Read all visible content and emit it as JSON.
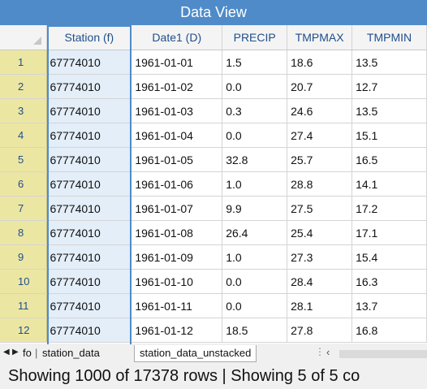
{
  "window": {
    "title": "Data View"
  },
  "grid": {
    "columns": [
      "Station (f)",
      "Date1 (D)",
      "PRECIP",
      "TMPMAX",
      "TMPMIN"
    ],
    "rows": [
      [
        "1",
        "67774010",
        "1961-01-01",
        "1.5",
        "18.6",
        "13.5"
      ],
      [
        "2",
        "67774010",
        "1961-01-02",
        "0.0",
        "20.7",
        "12.7"
      ],
      [
        "3",
        "67774010",
        "1961-01-03",
        "0.3",
        "24.6",
        "13.5"
      ],
      [
        "4",
        "67774010",
        "1961-01-04",
        "0.0",
        "27.4",
        "15.1"
      ],
      [
        "5",
        "67774010",
        "1961-01-05",
        "32.8",
        "25.7",
        "16.5"
      ],
      [
        "6",
        "67774010",
        "1961-01-06",
        "1.0",
        "28.8",
        "14.1"
      ],
      [
        "7",
        "67774010",
        "1961-01-07",
        "9.9",
        "27.5",
        "17.2"
      ],
      [
        "8",
        "67774010",
        "1961-01-08",
        "26.4",
        "25.4",
        "17.1"
      ],
      [
        "9",
        "67774010",
        "1961-01-09",
        "1.0",
        "27.3",
        "15.4"
      ],
      [
        "10",
        "67774010",
        "1961-01-10",
        "0.0",
        "28.4",
        "16.3"
      ],
      [
        "11",
        "67774010",
        "1961-01-11",
        "0.0",
        "28.1",
        "13.7"
      ],
      [
        "12",
        "67774010",
        "1961-01-12",
        "18.5",
        "27.8",
        "16.8"
      ]
    ]
  },
  "tabs": {
    "prev_icon": "triangle-left-icon",
    "next_icon": "triangle-right-icon",
    "items": [
      "fo",
      "station_data",
      "station_data_unstacked"
    ],
    "active": "station_data_unstacked"
  },
  "status": {
    "text": "Showing 1000 of 17378 rows | Showing 5 of 5 co"
  }
}
